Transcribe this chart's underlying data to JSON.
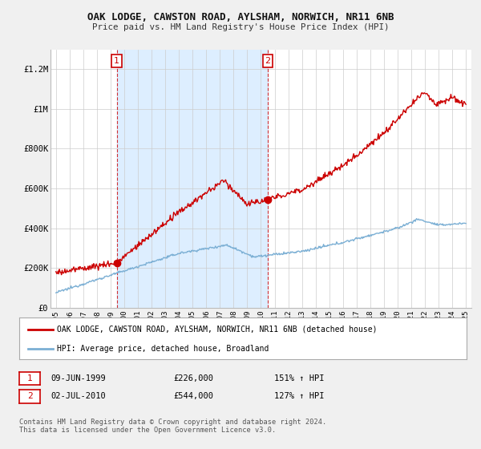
{
  "title1": "OAK LODGE, CAWSTON ROAD, AYLSHAM, NORWICH, NR11 6NB",
  "title2": "Price paid vs. HM Land Registry's House Price Index (HPI)",
  "ylim": [
    0,
    1300000
  ],
  "yticks": [
    0,
    200000,
    400000,
    600000,
    800000,
    1000000,
    1200000
  ],
  "ytick_labels": [
    "£0",
    "£200K",
    "£400K",
    "£600K",
    "£800K",
    "£1M",
    "£1.2M"
  ],
  "sale1_x": 1999.44,
  "sale1_price": 226000,
  "sale2_x": 2010.5,
  "sale2_price": 544000,
  "legend_line1": "OAK LODGE, CAWSTON ROAD, AYLSHAM, NORWICH, NR11 6NB (detached house)",
  "legend_line2": "HPI: Average price, detached house, Broadland",
  "table_row1": [
    "1",
    "09-JUN-1999",
    "£226,000",
    "151% ↑ HPI"
  ],
  "table_row2": [
    "2",
    "02-JUL-2010",
    "£544,000",
    "127% ↑ HPI"
  ],
  "footnote": "Contains HM Land Registry data © Crown copyright and database right 2024.\nThis data is licensed under the Open Government Licence v3.0.",
  "house_color": "#cc0000",
  "hpi_color": "#7bafd4",
  "shade_color": "#ddeeff",
  "background_color": "#f0f0f0",
  "plot_bg_color": "#ffffff",
  "xmin": 1994.6,
  "xmax": 2025.4,
  "xticks": [
    1995,
    1996,
    1997,
    1998,
    1999,
    2000,
    2001,
    2002,
    2003,
    2004,
    2005,
    2006,
    2007,
    2008,
    2009,
    2010,
    2011,
    2012,
    2013,
    2014,
    2015,
    2016,
    2017,
    2018,
    2019,
    2020,
    2021,
    2022,
    2023,
    2024,
    2025
  ]
}
